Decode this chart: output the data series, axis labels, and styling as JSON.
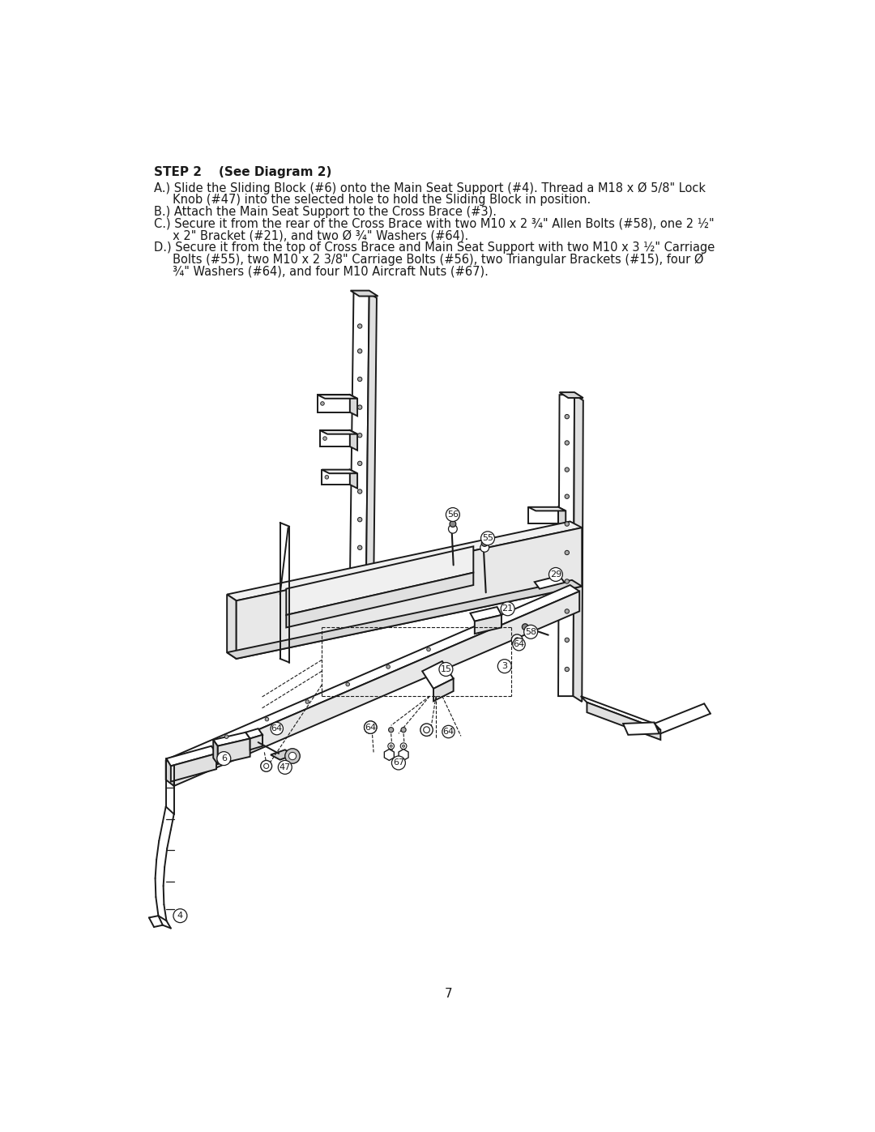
{
  "title": "STEP 2    (See Diagram 2)",
  "line_A1": "A.) Slide the Sliding Block (#6) onto the Main Seat Support (#4). Thread a M18 x Ø 5/8\" Lock",
  "line_A2": "     Knob (#47) into the selected hole to hold the Sliding Block in position.",
  "line_B": "B.) Attach the Main Seat Support to the Cross Brace (#3).",
  "line_C1": "C.) Secure it from the rear of the Cross Brace with two M10 x 2 ¾\" Allen Bolts (#58), one 2 ½\"",
  "line_C2": "     x 2\" Bracket (#21), and two Ø ¾\" Washers (#64).",
  "line_D1": "D.) Secure it from the top of Cross Brace and Main Seat Support with two M10 x 3 ½\" Carriage",
  "line_D2": "     Bolts (#55), two M10 x 2 3/8\" Carriage Bolts (#56), two Triangular Brackets (#15), four Ø",
  "line_D3": "     ¾\" Washers (#64), and four M10 Aircraft Nuts (#67).",
  "page_number": "7",
  "bg_color": "#ffffff",
  "text_color": "#000000",
  "lc": "#1a1a1a",
  "lw_main": 1.4,
  "lw_thin": 0.9,
  "lw_dash": 0.8
}
